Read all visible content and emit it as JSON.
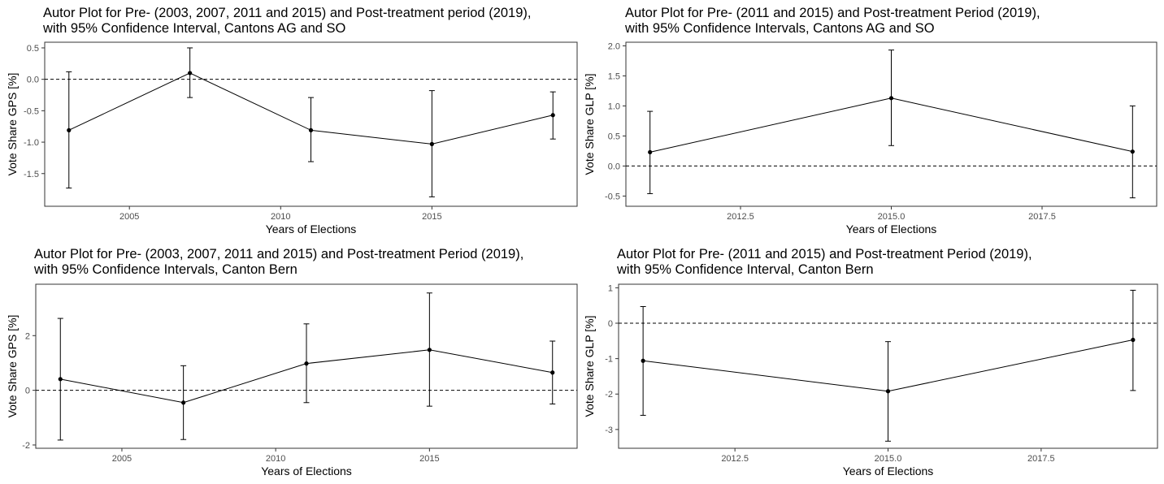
{
  "chart_data": [
    {
      "type": "line",
      "title": "Autor Plot for Pre- (2003, 2007, 2011 and 2015) and Post-treatment period (2019),\nwith 95% Confidence Interval, Cantons AG and SO",
      "xlabel": "Years of Elections",
      "ylabel": "Vote Share GPS [%]",
      "xlim": [
        2002.2,
        2019.8
      ],
      "ylim": [
        -2.02,
        0.59
      ],
      "xticks": [
        2005,
        2010,
        2015
      ],
      "xtick_labels": [
        "2005",
        "2010",
        "2015"
      ],
      "yticks": [
        -1.5,
        -1.0,
        -0.5,
        0.0,
        0.5
      ],
      "ytick_labels": [
        "-1.5",
        "-1.0",
        "-0.5",
        "0.0",
        "0.5"
      ],
      "reference_line": 0,
      "grid": false,
      "legend": "none",
      "x": [
        2003,
        2007,
        2011,
        2015,
        2019
      ],
      "y": [
        -0.81,
        0.1,
        -0.81,
        -1.03,
        -0.57
      ],
      "ci_lower": [
        -1.73,
        -0.29,
        -1.31,
        -1.87,
        -0.95
      ],
      "ci_upper": [
        0.12,
        0.5,
        -0.29,
        -0.18,
        -0.2
      ]
    },
    {
      "type": "line",
      "title": "Autor Plot for Pre- (2011 and 2015) and Post-treatment Period (2019),\nwith 95% Confidence Intervals, Cantons AG and SO",
      "xlabel": "Years of Elections",
      "ylabel": "Vote Share GLP [%]",
      "xlim": [
        2010.6,
        2019.4
      ],
      "ylim": [
        -0.67,
        2.06
      ],
      "xticks": [
        2012.5,
        2015.0,
        2017.5
      ],
      "xtick_labels": [
        "2012.5",
        "2015.0",
        "2017.5"
      ],
      "yticks": [
        -0.5,
        0.0,
        0.5,
        1.0,
        1.5,
        2.0
      ],
      "ytick_labels": [
        "-0.5",
        "0.0",
        "0.5",
        "1.0",
        "1.5",
        "2.0"
      ],
      "reference_line": 0,
      "grid": false,
      "legend": "none",
      "x": [
        2011,
        2015,
        2019
      ],
      "y": [
        0.23,
        1.13,
        0.24
      ],
      "ci_lower": [
        -0.46,
        0.34,
        -0.53
      ],
      "ci_upper": [
        0.91,
        1.93,
        1.0
      ]
    },
    {
      "type": "line",
      "title": "Autor Plot for Pre- (2003, 2007, 2011 and 2015) and Post-treatment Period (2019),\nwith 95% Confidence Intervals, Canton Bern",
      "xlabel": "Years of Elections",
      "ylabel": "Vote Share GPS [%]",
      "xlim": [
        2002.2,
        2019.8
      ],
      "ylim": [
        -2.12,
        3.88
      ],
      "xticks": [
        2005,
        2010,
        2015
      ],
      "xtick_labels": [
        "2005",
        "2010",
        "2015"
      ],
      "yticks": [
        -2,
        0,
        2
      ],
      "ytick_labels": [
        "-2",
        "0",
        "2"
      ],
      "reference_line": 0,
      "grid": false,
      "legend": "none",
      "x": [
        2003,
        2007,
        2011,
        2015,
        2019
      ],
      "y": [
        0.41,
        -0.45,
        0.98,
        1.48,
        0.65
      ],
      "ci_lower": [
        -1.82,
        -1.8,
        -0.45,
        -0.58,
        -0.5
      ],
      "ci_upper": [
        2.63,
        0.9,
        2.43,
        3.56,
        1.8
      ]
    },
    {
      "type": "line",
      "title": "Autor Plot for Pre- (2011 and 2015) and Post-treatment Period (2019),\nwith 95% Confidence Interval, Canton Bern",
      "xlabel": "Years of Elections",
      "ylabel": "Vote Share GLP [%]",
      "xlim": [
        2010.6,
        2019.4
      ],
      "ylim": [
        -3.53,
        1.1
      ],
      "xticks": [
        2012.5,
        2015.0,
        2017.5
      ],
      "xtick_labels": [
        "2012.5",
        "2015.0",
        "2017.5"
      ],
      "yticks": [
        -3,
        -2,
        -1,
        0,
        1
      ],
      "ytick_labels": [
        "-3",
        "-2",
        "-1",
        "0",
        "1"
      ],
      "reference_line": 0,
      "grid": false,
      "legend": "none",
      "x": [
        2011,
        2015,
        2019
      ],
      "y": [
        -1.06,
        -1.92,
        -0.47
      ],
      "ci_lower": [
        -2.6,
        -3.33,
        -1.9
      ],
      "ci_upper": [
        0.47,
        -0.52,
        0.93
      ]
    }
  ]
}
